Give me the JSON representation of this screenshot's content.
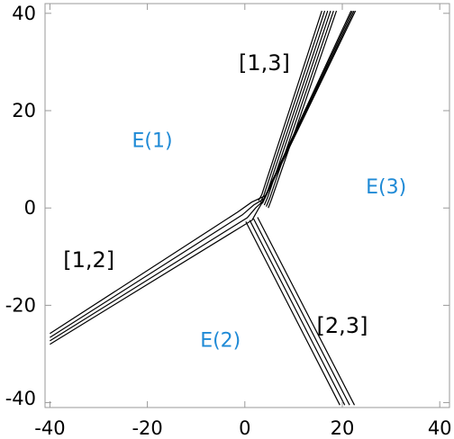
{
  "chart_data": {
    "type": "line",
    "title": "",
    "xlabel": "",
    "ylabel": "",
    "xlim": [
      -41,
      42
    ],
    "ylim": [
      -41,
      42
    ],
    "grid": false,
    "x_ticks": [
      -40,
      -20,
      0,
      20,
      40
    ],
    "y_ticks": [
      -40,
      -20,
      0,
      20,
      40
    ],
    "x_tick_labels": [
      "-40",
      "-20",
      "0",
      "20",
      "40"
    ],
    "y_tick_labels": [
      "-40",
      "-20",
      "0",
      "20",
      "40"
    ],
    "region_labels": [
      {
        "text": "E(1)",
        "x": -19,
        "y": 14
      },
      {
        "text": "E(2)",
        "x": -5,
        "y": -27
      },
      {
        "text": "E(3)",
        "x": 29,
        "y": 4.5
      }
    ],
    "wall_labels": [
      {
        "text": "[1,3]",
        "x": 4,
        "y": 30
      },
      {
        "text": "[1,2]",
        "x": -32,
        "y": -10.5
      },
      {
        "text": "[2,3]",
        "x": 20,
        "y": -24
      }
    ],
    "series": [
      {
        "values": [
          [
            -40,
            -28.0
          ],
          [
            1.5,
            -2.5
          ],
          [
            2.6,
            -0.5
          ],
          [
            3.5,
            1.0
          ],
          [
            21.8,
            40.5
          ]
        ]
      },
      {
        "values": [
          [
            -40,
            -27.3
          ],
          [
            0.5,
            -2.0
          ],
          [
            2.2,
            0.0
          ],
          [
            3.8,
            1.5
          ],
          [
            22.1,
            40.5
          ]
        ]
      },
      {
        "values": [
          [
            -40,
            -26.6
          ],
          [
            -0.5,
            -1.4
          ],
          [
            1.8,
            0.6
          ],
          [
            4.1,
            2.0
          ],
          [
            22.4,
            40.5
          ]
        ]
      },
      {
        "values": [
          [
            -40,
            -25.8
          ],
          [
            -1.4,
            -0.8
          ],
          [
            1.4,
            1.2
          ],
          [
            4.4,
            2.6
          ],
          [
            22.7,
            40.5
          ]
        ]
      },
      {
        "values": [
          [
            0.2,
            -2.8
          ],
          [
            19.5,
            -40.5
          ]
        ]
      },
      {
        "values": [
          [
            1.0,
            -2.5
          ],
          [
            20.5,
            -40.5
          ]
        ]
      },
      {
        "values": [
          [
            1.8,
            -2.2
          ],
          [
            21.5,
            -40.5
          ]
        ]
      },
      {
        "values": [
          [
            2.6,
            -1.9
          ],
          [
            22.5,
            -40.5
          ]
        ]
      },
      {
        "values": [
          [
            15.8,
            40.5
          ],
          [
            3.5,
            2.8
          ],
          [
            2.8,
            1.5
          ]
        ]
      },
      {
        "values": [
          [
            16.4,
            40.5
          ],
          [
            3.9,
            2.6
          ],
          [
            3.2,
            1.2
          ]
        ]
      },
      {
        "values": [
          [
            17.0,
            40.5
          ],
          [
            4.3,
            2.4
          ],
          [
            3.6,
            0.9
          ]
        ]
      },
      {
        "values": [
          [
            17.6,
            40.5
          ],
          [
            4.7,
            2.2
          ],
          [
            4.0,
            0.6
          ]
        ]
      },
      {
        "values": [
          [
            18.2,
            40.5
          ],
          [
            5.1,
            2.0
          ],
          [
            4.4,
            0.3
          ]
        ]
      },
      {
        "values": [
          [
            18.8,
            40.5
          ],
          [
            5.5,
            1.8
          ],
          [
            4.8,
            0.0
          ]
        ]
      }
    ]
  }
}
